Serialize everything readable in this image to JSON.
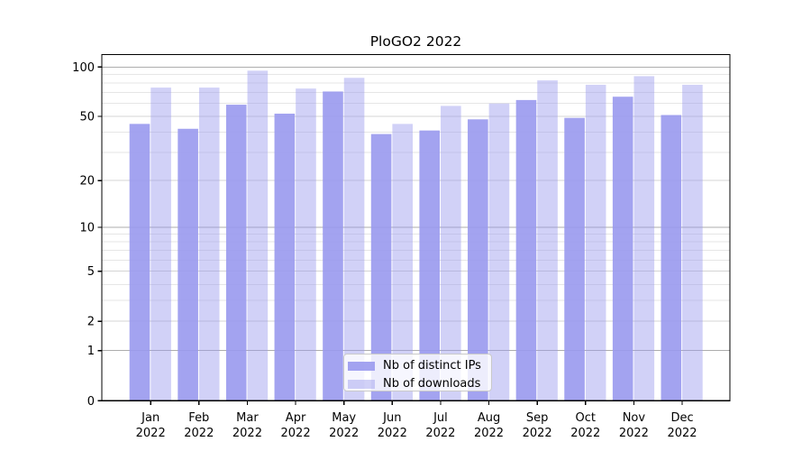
{
  "chart_data": {
    "type": "bar",
    "title": "PloGO2 2022",
    "categories": [
      "Jan",
      "Feb",
      "Mar",
      "Apr",
      "May",
      "Jun",
      "Jul",
      "Aug",
      "Sep",
      "Oct",
      "Nov",
      "Dec"
    ],
    "year": "2022",
    "series": [
      {
        "name": "Nb of distinct IPs",
        "color": "#9999ee",
        "alpha": 0.9,
        "values": [
          45,
          42,
          59,
          52,
          71,
          39,
          41,
          48,
          63,
          49,
          66,
          51
        ]
      },
      {
        "name": "Nb of downloads",
        "color": "#9999ee",
        "alpha": 0.45,
        "values": [
          75,
          75,
          95,
          74,
          86,
          45,
          58,
          60,
          83,
          78,
          88,
          78
        ]
      }
    ],
    "yscale": "log1p",
    "ylim": [
      0,
      119
    ],
    "yticks": [
      0,
      1,
      2,
      5,
      10,
      20,
      50,
      100
    ],
    "decade_yticks": [
      1,
      10,
      100
    ],
    "minor_yticks": [
      3,
      4,
      6,
      7,
      8,
      9,
      30,
      40,
      60,
      70,
      80,
      90
    ],
    "grid": true,
    "legend_position": "lower center",
    "colors": {
      "axis": "#000000",
      "text": "#000000",
      "grid_decade": "#adadad",
      "grid_major": "#d4d4d4",
      "grid_minor": "#e6e6e6"
    }
  }
}
